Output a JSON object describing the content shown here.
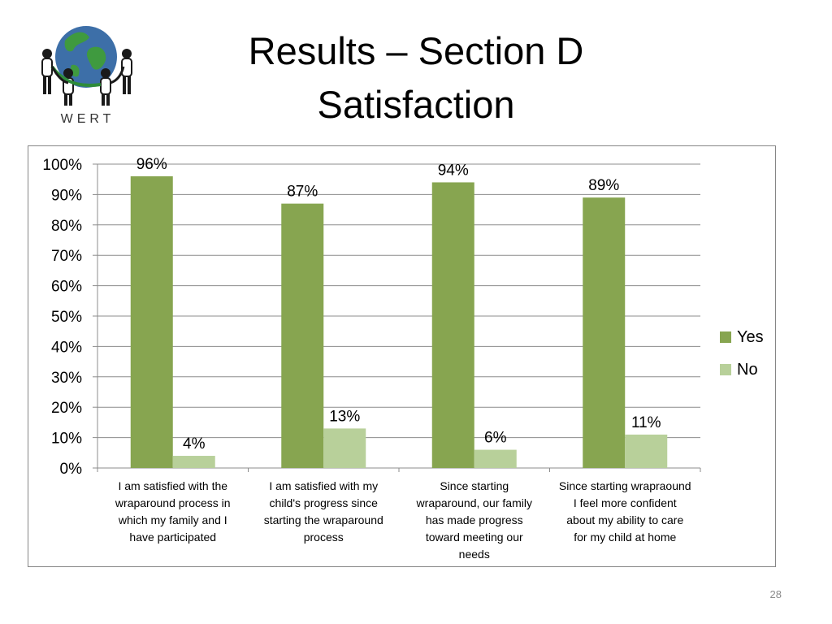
{
  "slide": {
    "title_line1": "Results – Section D",
    "title_line2": "Satisfaction",
    "logo_text": "WERT",
    "page_number": "28"
  },
  "colors": {
    "yes": "#87a550",
    "no": "#b8d09a",
    "grid": "#8c8c8c",
    "frame": "#868686"
  },
  "chart_data": {
    "type": "bar",
    "title": "",
    "xlabel": "",
    "ylabel": "",
    "ylim": [
      0,
      100
    ],
    "y_ticks": [
      "0%",
      "10%",
      "20%",
      "30%",
      "40%",
      "50%",
      "60%",
      "70%",
      "80%",
      "90%",
      "100%"
    ],
    "grid": true,
    "legend_position": "right",
    "categories": [
      "I am satisfied with the wraparound process in which my family and I have participated",
      "I am satisfied with my child's progress since starting the wraparound process",
      "Since starting wraparound, our family has made progress toward meeting our needs",
      "Since starting wrapraound I feel more confident about my ability to care for my child at home"
    ],
    "category_lines": [
      [
        "I am satisfied with the",
        "wraparound process in",
        "which my family and I",
        "have participated"
      ],
      [
        "I am satisfied with my",
        "child's progress since",
        "starting the wraparound",
        "process"
      ],
      [
        "Since starting",
        "wraparound, our family",
        "has made progress",
        "toward meeting our",
        "needs"
      ],
      [
        "Since starting wrapraound",
        "I feel more confident",
        "about my ability to care",
        "for my child at home"
      ]
    ],
    "series": [
      {
        "name": "Yes",
        "values": [
          96,
          87,
          94,
          89
        ],
        "labels": [
          "96%",
          "87%",
          "94%",
          "89%"
        ]
      },
      {
        "name": "No",
        "values": [
          4,
          13,
          6,
          11
        ],
        "labels": [
          "4%",
          "13%",
          "6%",
          "11%"
        ]
      }
    ]
  }
}
